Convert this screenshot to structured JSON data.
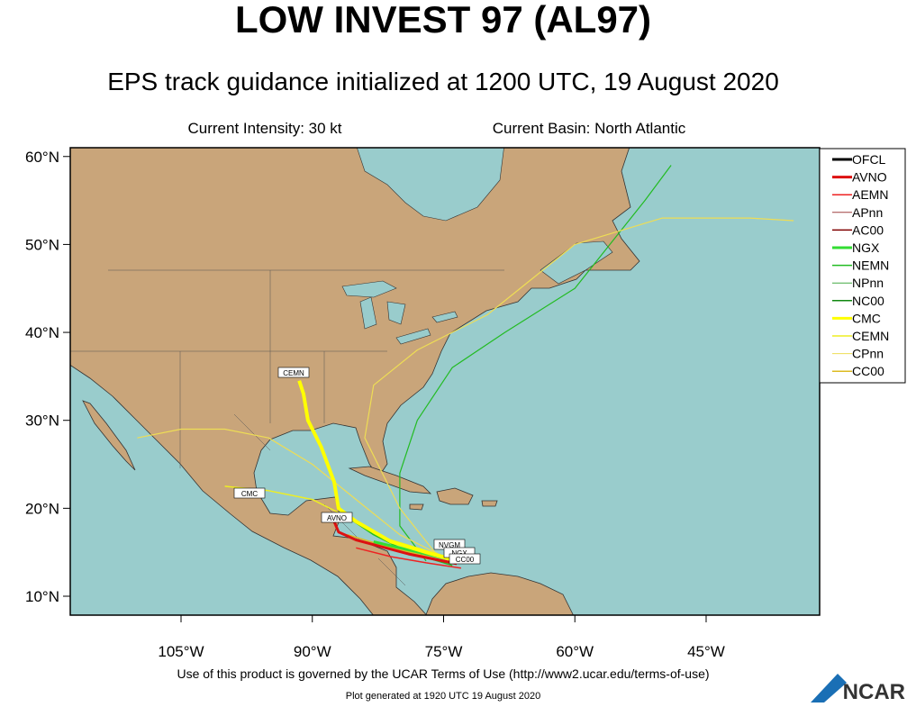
{
  "header": {
    "title": "LOW INVEST 97 (AL97)",
    "subtitle": "EPS track guidance initialized at 1200 UTC, 19 August 2020",
    "intensity": "Current Intensity: 30 kt",
    "basin": "Current Basin: North Atlantic"
  },
  "map": {
    "lon_range": [
      -117.66,
      -32.03
    ],
    "lat_range": [
      7.85,
      61.0
    ],
    "lat_ticks": [
      {
        "value": 60,
        "label": "60°N"
      },
      {
        "value": 50,
        "label": "50°N"
      },
      {
        "value": 40,
        "label": "40°N"
      },
      {
        "value": 30,
        "label": "30°N"
      },
      {
        "value": 20,
        "label": "20°N"
      },
      {
        "value": 10,
        "label": "10°N"
      }
    ],
    "lon_ticks": [
      {
        "value": -105,
        "label": "105°W"
      },
      {
        "value": -90,
        "label": "90°W"
      },
      {
        "value": -75,
        "label": "75°W"
      },
      {
        "value": -60,
        "label": "60°W"
      },
      {
        "value": -45,
        "label": "45°W"
      }
    ],
    "tracks": [
      {
        "color": "#22bb22",
        "width": 1.2,
        "lon": [
          -77,
          -80,
          -80,
          -78,
          -74,
          -68,
          -60,
          -52,
          -49
        ],
        "lat": [
          14,
          18,
          24,
          30,
          36,
          40,
          45,
          55,
          59
        ]
      },
      {
        "color": "#eedd55",
        "width": 1.2,
        "lon": [
          -76,
          -80,
          -84,
          -83,
          -78,
          -70,
          -60,
          -50,
          -40,
          -35
        ],
        "lat": [
          15,
          20,
          28,
          34,
          38,
          42,
          50,
          53,
          53,
          52.7
        ]
      },
      {
        "color": "#eedd55",
        "width": 1.2,
        "lon": [
          -74,
          -80,
          -85,
          -90,
          -95,
          -100,
          -105,
          -110
        ],
        "lat": [
          14,
          17,
          21,
          25,
          28,
          29,
          29,
          28
        ]
      },
      {
        "color": "#eeee22",
        "width": 1.5,
        "lon": [
          -73,
          -78,
          -83,
          -86,
          -90,
          -95,
          -100
        ],
        "lat": [
          14,
          15.5,
          17,
          19,
          21,
          22,
          22.5
        ]
      },
      {
        "color": "#22bb22",
        "width": 1.5,
        "lon": [
          -74,
          -79,
          -83,
          -86
        ],
        "lat": [
          13.5,
          15,
          17,
          19
        ]
      },
      {
        "color": "#ddbb22",
        "width": 1.5,
        "lon": [
          -74,
          -78,
          -82,
          -86
        ],
        "lat": [
          13.8,
          14.8,
          15.8,
          17
        ]
      },
      {
        "color": "#33dd33",
        "width": 3,
        "lon": [
          -73.5,
          -77,
          -80,
          -83
        ],
        "lat": [
          14,
          14.8,
          15.5,
          16.2
        ]
      },
      {
        "color": "#ffff00",
        "width": 4,
        "lon": [
          -73.5,
          -77,
          -81,
          -85,
          -87,
          -87.5,
          -89,
          -90.5,
          -91,
          -91.5
        ],
        "lat": [
          14,
          15,
          16.2,
          18.5,
          20,
          23,
          27,
          30,
          33,
          34.5
        ]
      },
      {
        "color": "#ee2222",
        "width": 1.5,
        "lon": [
          -73,
          -77,
          -81,
          -85
        ],
        "lat": [
          13.2,
          13.8,
          14.5,
          15.5
        ]
      },
      {
        "color": "#dd1111",
        "width": 3,
        "lon": [
          -73.5,
          -76,
          -79,
          -82,
          -85,
          -87,
          -87.5
        ],
        "lat": [
          13.7,
          14.2,
          14.8,
          15.6,
          16.4,
          17.3,
          18.5
        ]
      }
    ],
    "track_labels": [
      "CEMN",
      "CMC",
      "AVNO",
      "NVGM",
      "NGX",
      "CC00"
    ]
  },
  "legend": [
    {
      "name": "OFCL",
      "color": "#000000",
      "width": 3
    },
    {
      "name": "AVNO",
      "color": "#dd1111",
      "width": 3
    },
    {
      "name": "AEMN",
      "color": "#ee2222",
      "width": 1.5
    },
    {
      "name": "APnn",
      "color": "#a04040",
      "width": 1
    },
    {
      "name": "AC00",
      "color": "#800000",
      "width": 1.5
    },
    {
      "name": "NGX",
      "color": "#33dd33",
      "width": 3
    },
    {
      "name": "NEMN",
      "color": "#22bb22",
      "width": 1.5
    },
    {
      "name": "NPnn",
      "color": "#44aa44",
      "width": 1
    },
    {
      "name": "NC00",
      "color": "#118811",
      "width": 1.5
    },
    {
      "name": "CMC",
      "color": "#ffff00",
      "width": 3
    },
    {
      "name": "CEMN",
      "color": "#eeee22",
      "width": 1.5
    },
    {
      "name": "CPnn",
      "color": "#eedd55",
      "width": 1
    },
    {
      "name": "CC00",
      "color": "#ddbb22",
      "width": 1.5
    }
  ],
  "footer": {
    "terms": "Use of this product is governed by the UCAR Terms of Use (http://www2.ucar.edu/terms-of-use)",
    "generated": "Plot generated at 1920 UTC   19 August 2020",
    "logo": "NCAR"
  }
}
